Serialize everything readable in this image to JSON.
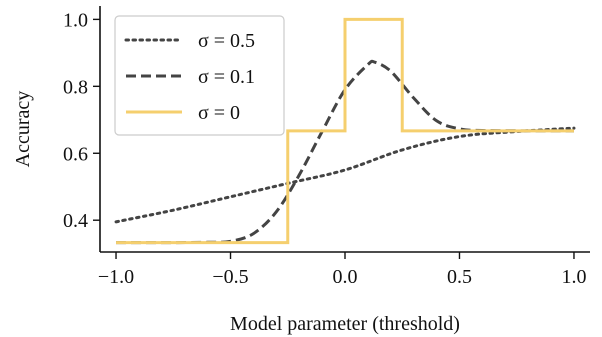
{
  "chart_data": {
    "type": "line",
    "title": "",
    "xlabel": "Model parameter (threshold)",
    "ylabel": "Accuracy",
    "xlim": [
      -1.07,
      1.07
    ],
    "ylim": [
      0.305,
      1.04
    ],
    "xticks": [
      -1.0,
      -0.5,
      0.0,
      0.5,
      1.0
    ],
    "xtick_labels": [
      "−1.0",
      "−0.5",
      "0.0",
      "0.5",
      "1.0"
    ],
    "yticks": [
      0.4,
      0.6,
      0.8,
      1.0
    ],
    "ytick_labels": [
      "0.4",
      "0.6",
      "0.8",
      "1.0"
    ],
    "grid": false,
    "legend_position": "top-left",
    "series": [
      {
        "name": "σ = 0.5",
        "style": "dotted",
        "color": "#444444",
        "x": [
          -1.0,
          -0.75,
          -0.5,
          -0.25,
          0.0,
          0.25,
          0.5,
          0.75,
          1.0
        ],
        "y": [
          0.395,
          0.43,
          0.47,
          0.51,
          0.55,
          0.61,
          0.65,
          0.665,
          0.675
        ]
      },
      {
        "name": "σ = 0.1",
        "style": "dashed",
        "color": "#444444",
        "x": [
          -1.0,
          -0.8,
          -0.6,
          -0.5,
          -0.4,
          -0.3,
          -0.2,
          -0.1,
          0.0,
          0.1,
          0.13,
          0.2,
          0.3,
          0.4,
          0.5,
          0.6,
          0.8,
          1.0
        ],
        "y": [
          0.333,
          0.333,
          0.334,
          0.337,
          0.36,
          0.425,
          0.535,
          0.665,
          0.79,
          0.865,
          0.872,
          0.845,
          0.765,
          0.697,
          0.673,
          0.668,
          0.667,
          0.667
        ]
      },
      {
        "name": "σ = 0",
        "style": "solid",
        "color": "#f5cf6e",
        "x": [
          -1.0,
          -0.25,
          -0.25,
          0.0,
          0.0,
          0.25,
          0.25,
          1.0
        ],
        "y": [
          0.333,
          0.333,
          0.667,
          0.667,
          1.0,
          1.0,
          0.667,
          0.667
        ]
      }
    ]
  }
}
